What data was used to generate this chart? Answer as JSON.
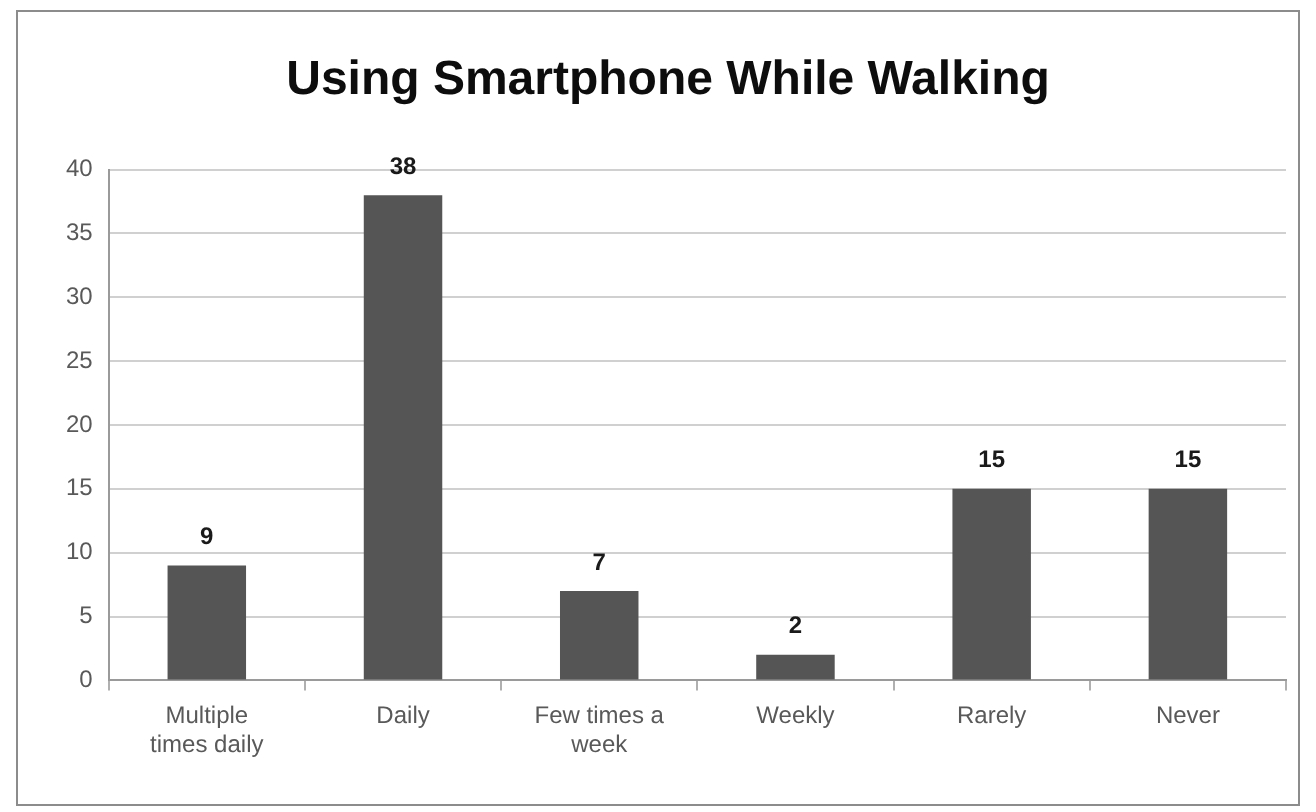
{
  "chart_data": {
    "type": "bar",
    "title": "Using Smartphone While Walking",
    "categories": [
      "Multiple times daily",
      "Daily",
      "Few times a week",
      "Weekly",
      "Rarely",
      "Never"
    ],
    "values": [
      9,
      38,
      7,
      2,
      15,
      15
    ],
    "color": "#555555",
    "ylim": [
      0,
      40
    ],
    "yticks": [
      0,
      5,
      10,
      15,
      20,
      25,
      30,
      35,
      40
    ],
    "grid": "y",
    "data_labels": true
  }
}
